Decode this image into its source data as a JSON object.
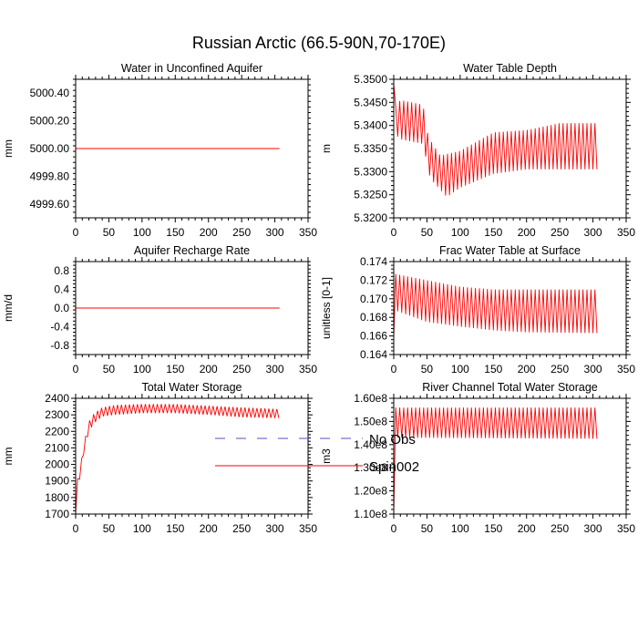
{
  "figure": {
    "title": "Russian Arctic (66.5-90N,70-170E)",
    "legend": {
      "placement": "bottom-center",
      "entries": [
        {
          "label": "No Obs",
          "color": "#5050c8",
          "style": "dashed"
        },
        {
          "label": "Spin002",
          "color": "#ff0000",
          "style": "solid"
        }
      ]
    }
  },
  "chart_data": [
    {
      "type": "line",
      "title": "Water in Unconfined Aquifer",
      "xlabel": "",
      "ylabel": "mm",
      "xlim": [
        0,
        350
      ],
      "ylim": [
        4999.5,
        5000.5
      ],
      "xticks": [
        0,
        50,
        100,
        150,
        200,
        250,
        300,
        350
      ],
      "xtick_labels": [
        "0",
        "50",
        "100",
        "150",
        "200",
        "250",
        "300",
        "350"
      ],
      "yticks": [
        4999.6,
        4999.8,
        5000.0,
        5000.2,
        5000.4
      ],
      "ytick_labels": [
        "4999.60",
        "4999.80",
        "5000.00",
        "5000.20",
        "5000.40"
      ],
      "series": [
        {
          "name": "Spin002",
          "kind": "constant",
          "x_end": 307,
          "value": 5000.0
        }
      ]
    },
    {
      "type": "line",
      "title": "Water Table Depth",
      "xlabel": "",
      "ylabel": "m",
      "xlim": [
        0,
        350
      ],
      "ylim": [
        5.32,
        5.35
      ],
      "xticks": [
        0,
        50,
        100,
        150,
        200,
        250,
        300,
        350
      ],
      "xtick_labels": [
        "0",
        "50",
        "100",
        "150",
        "200",
        "250",
        "300",
        "350"
      ],
      "yticks": [
        5.32,
        5.325,
        5.33,
        5.335,
        5.34,
        5.345,
        5.35
      ],
      "ytick_labels": [
        "5.3200",
        "5.3250",
        "5.3300",
        "5.3350",
        "5.3400",
        "5.3450",
        "5.3500"
      ],
      "series": [
        {
          "name": "Spin002",
          "kind": "oscillating",
          "x_end": 307,
          "period": 6,
          "start": [
            0,
            5.349
          ],
          "lower": [
            [
              0,
              5.3385
            ],
            [
              10,
              5.337
            ],
            [
              44,
              5.336
            ],
            [
              55,
              5.3285
            ],
            [
              80,
              5.3245
            ],
            [
              100,
              5.3265
            ],
            [
              150,
              5.3295
            ],
            [
              200,
              5.3305
            ],
            [
              250,
              5.3305
            ],
            [
              307,
              5.3305
            ]
          ],
          "upper": [
            [
              0,
              5.3435
            ],
            [
              10,
              5.3455
            ],
            [
              44,
              5.3445
            ],
            [
              52,
              5.3375
            ],
            [
              70,
              5.3335
            ],
            [
              100,
              5.3345
            ],
            [
              150,
              5.3385
            ],
            [
              200,
              5.339
            ],
            [
              250,
              5.3405
            ],
            [
              307,
              5.3405
            ]
          ]
        }
      ]
    },
    {
      "type": "line",
      "title": "Aquifer Recharge Rate",
      "xlabel": "",
      "ylabel": "mm/d",
      "xlim": [
        0,
        350
      ],
      "ylim": [
        -1.0,
        1.0
      ],
      "xticks": [
        0,
        50,
        100,
        150,
        200,
        250,
        300,
        350
      ],
      "xtick_labels": [
        "0",
        "50",
        "100",
        "150",
        "200",
        "250",
        "300",
        "350"
      ],
      "yticks": [
        -0.8,
        -0.4,
        0.0,
        0.4,
        0.8
      ],
      "ytick_labels": [
        "-0.8",
        "-0.4",
        "0.0",
        "0.4",
        "0.8"
      ],
      "series": [
        {
          "name": "Spin002",
          "kind": "constant",
          "x_end": 307,
          "value": 0.0
        }
      ]
    },
    {
      "type": "line",
      "title": "Frac Water Table at Surface",
      "xlabel": "",
      "ylabel": "unitless [0-1]",
      "xlim": [
        0,
        350
      ],
      "ylim": [
        0.164,
        0.174
      ],
      "xticks": [
        0,
        50,
        100,
        150,
        200,
        250,
        300,
        350
      ],
      "xtick_labels": [
        "0",
        "50",
        "100",
        "150",
        "200",
        "250",
        "300",
        "350"
      ],
      "yticks": [
        0.164,
        0.166,
        0.168,
        0.17,
        0.172,
        0.174
      ],
      "ytick_labels": [
        "0.164",
        "0.166",
        "0.168",
        "0.170",
        "0.172",
        "0.174"
      ],
      "series": [
        {
          "name": "Spin002",
          "kind": "oscillating",
          "x_end": 307,
          "period": 6,
          "start": [
            0,
            0.1658
          ],
          "lower": [
            [
              0,
              0.1688
            ],
            [
              50,
              0.1675
            ],
            [
              100,
              0.167
            ],
            [
              150,
              0.1666
            ],
            [
              200,
              0.1664
            ],
            [
              307,
              0.1663
            ]
          ],
          "upper": [
            [
              0,
              0.1727
            ],
            [
              50,
              0.172
            ],
            [
              100,
              0.1713
            ],
            [
              150,
              0.171
            ],
            [
              200,
              0.171
            ],
            [
              307,
              0.171
            ]
          ]
        }
      ]
    },
    {
      "type": "line",
      "title": "Total Water Storage",
      "xlabel": "",
      "ylabel": "mm",
      "xlim": [
        0,
        350
      ],
      "ylim": [
        1700,
        2400
      ],
      "xticks": [
        0,
        50,
        100,
        150,
        200,
        250,
        300,
        350
      ],
      "xtick_labels": [
        "0",
        "50",
        "100",
        "150",
        "200",
        "250",
        "300",
        "350"
      ],
      "yticks": [
        1700,
        1800,
        1900,
        2000,
        2100,
        2200,
        2300,
        2400
      ],
      "ytick_labels": [
        "1700",
        "1800",
        "1900",
        "2000",
        "2100",
        "2200",
        "2300",
        "2400"
      ],
      "series": [
        {
          "name": "Spin002",
          "kind": "oscillating",
          "x_end": 307,
          "period": 6,
          "start": [
            0,
            1700
          ],
          "lower": [
            [
              0,
              1700
            ],
            [
              2,
              1880
            ],
            [
              6,
              1910
            ],
            [
              10,
              2020
            ],
            [
              15,
              2120
            ],
            [
              20,
              2200
            ],
            [
              28,
              2250
            ],
            [
              40,
              2290
            ],
            [
              60,
              2300
            ],
            [
              100,
              2310
            ],
            [
              150,
              2310
            ],
            [
              200,
              2300
            ],
            [
              250,
              2285
            ],
            [
              307,
              2280
            ]
          ],
          "upper": [
            [
              0,
              1700
            ],
            [
              2,
              1900
            ],
            [
              6,
              1960
            ],
            [
              10,
              2060
            ],
            [
              15,
              2170
            ],
            [
              20,
              2260
            ],
            [
              28,
              2310
            ],
            [
              40,
              2345
            ],
            [
              60,
              2360
            ],
            [
              100,
              2365
            ],
            [
              150,
              2365
            ],
            [
              200,
              2355
            ],
            [
              250,
              2345
            ],
            [
              307,
              2335
            ]
          ]
        }
      ]
    },
    {
      "type": "line",
      "title": "River Channel Total Water Storage",
      "xlabel": "",
      "ylabel": "m3",
      "xlim": [
        0,
        350
      ],
      "ylim": [
        110000000,
        160000000
      ],
      "xticks": [
        0,
        50,
        100,
        150,
        200,
        250,
        300,
        350
      ],
      "xtick_labels": [
        "0",
        "50",
        "100",
        "150",
        "200",
        "250",
        "300",
        "350"
      ],
      "yticks": [
        110000000,
        120000000,
        130000000,
        140000000,
        150000000,
        160000000
      ],
      "ytick_labels": [
        "1.10e8",
        "1.20e8",
        "1.30e8",
        "1.40e8",
        "1.50e8",
        "1.60e8"
      ],
      "series": [
        {
          "name": "Spin002",
          "kind": "oscillating",
          "x_end": 307,
          "period": 6,
          "start": [
            0,
            110000000
          ],
          "lower": [
            [
              0,
              111000000
            ],
            [
              1,
              143000000
            ],
            [
              307,
              142500000
            ]
          ],
          "upper": [
            [
              0,
              111000000
            ],
            [
              1,
              156000000
            ],
            [
              307,
              156000000
            ]
          ]
        }
      ]
    }
  ]
}
